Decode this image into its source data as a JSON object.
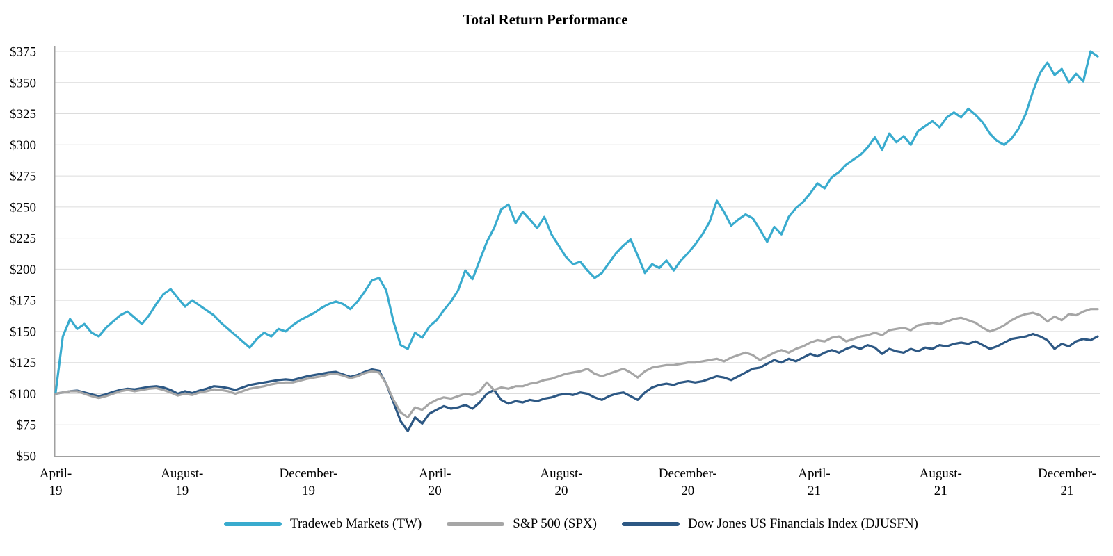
{
  "chart_data": {
    "type": "line",
    "title": "Total Return Performance",
    "grid": true,
    "legend_position": "bottom",
    "y_axis": {
      "min": 50,
      "max": 375,
      "step": 25,
      "tick_prefix": "$",
      "ticks": [
        {
          "value": 375,
          "label": "$375"
        },
        {
          "value": 350,
          "label": "$350"
        },
        {
          "value": 325,
          "label": "$325"
        },
        {
          "value": 300,
          "label": "$300"
        },
        {
          "value": 275,
          "label": "$275"
        },
        {
          "value": 250,
          "label": "$250"
        },
        {
          "value": 225,
          "label": "$225"
        },
        {
          "value": 200,
          "label": "$200"
        },
        {
          "value": 175,
          "label": "$175"
        },
        {
          "value": 150,
          "label": "$150"
        },
        {
          "value": 125,
          "label": "$125"
        },
        {
          "value": 100,
          "label": "$100"
        },
        {
          "value": 75,
          "label": "$75"
        },
        {
          "value": 50,
          "label": "$50"
        }
      ]
    },
    "x_axis": {
      "unit": "months-since-april-2019",
      "ticks": [
        {
          "month": 0,
          "top": "April-",
          "bottom": "19"
        },
        {
          "month": 4,
          "top": "August-",
          "bottom": "19"
        },
        {
          "month": 8,
          "top": "December-",
          "bottom": "19"
        },
        {
          "month": 12,
          "top": "April-",
          "bottom": "20"
        },
        {
          "month": 16,
          "top": "August-",
          "bottom": "20"
        },
        {
          "month": 20,
          "top": "December-",
          "bottom": "20"
        },
        {
          "month": 24,
          "top": "April-",
          "bottom": "21"
        },
        {
          "month": 28,
          "top": "August-",
          "bottom": "21"
        },
        {
          "month": 32,
          "top": "December-",
          "bottom": "21"
        }
      ]
    },
    "colors": {
      "grid": "#dcdcdc",
      "axis": "#a0a0a0",
      "text": "#000000"
    },
    "series": [
      {
        "name": "Tradeweb Markets (TW)",
        "color": "#39ABCE",
        "values": [
          101,
          146,
          160,
          152,
          156,
          149,
          146,
          153,
          158,
          163,
          166,
          161,
          156,
          163,
          172,
          180,
          184,
          177,
          170,
          175,
          171,
          167,
          163,
          157,
          152,
          147,
          142,
          137,
          144,
          149,
          146,
          152,
          150,
          155,
          159,
          162,
          165,
          169,
          172,
          174,
          172,
          168,
          174,
          182,
          191,
          193,
          183,
          158,
          139,
          136,
          149,
          145,
          154,
          159,
          167,
          174,
          183,
          199,
          192,
          207,
          222,
          233,
          248,
          252,
          237,
          246,
          240,
          233,
          242,
          228,
          219,
          210,
          204,
          206,
          199,
          193,
          197,
          205,
          213,
          219,
          224,
          211,
          197,
          204,
          201,
          207,
          199,
          207,
          213,
          220,
          228,
          238,
          255,
          246,
          235,
          240,
          244,
          241,
          232,
          222,
          234,
          228,
          242,
          249,
          254,
          261,
          269,
          265,
          274,
          278,
          284,
          288,
          292,
          298,
          306,
          296,
          309,
          302,
          307,
          300,
          311,
          315,
          319,
          314,
          322,
          326,
          322,
          329,
          324,
          318,
          309,
          303,
          300,
          305,
          313,
          325,
          343,
          358,
          366,
          356,
          361,
          350,
          357,
          351,
          375,
          371
        ]
      },
      {
        "name": "S&P 500 (SPX)",
        "color": "#A6A6A6",
        "values": [
          100,
          101,
          102,
          102,
          100,
          98,
          96.5,
          98,
          100,
          102,
          103,
          102,
          103,
          104,
          104.5,
          103,
          101,
          98.5,
          100,
          99,
          101,
          102,
          103.5,
          103,
          102,
          100,
          102,
          104,
          105,
          106,
          107.5,
          108.5,
          109,
          109,
          110.5,
          112,
          113,
          114,
          115.5,
          116,
          114.5,
          112.5,
          114,
          116.5,
          118,
          117,
          108,
          95,
          85,
          81,
          89,
          87,
          92,
          95,
          97,
          96,
          98,
          100,
          99,
          102,
          109,
          103,
          105,
          104,
          106,
          106,
          108,
          109,
          111,
          112,
          114,
          116,
          117,
          118,
          120,
          116,
          114,
          116,
          118,
          120,
          117,
          113,
          118,
          121,
          122,
          123,
          123,
          124,
          125,
          125,
          126,
          127,
          128,
          126,
          129,
          131,
          133,
          131,
          127,
          130,
          133,
          135,
          133,
          136,
          138,
          141,
          143,
          142,
          145,
          146,
          142,
          144,
          146,
          147,
          149,
          147,
          151,
          152,
          153,
          151,
          155,
          156,
          157,
          156,
          158,
          160,
          161,
          159,
          157,
          153,
          150,
          152,
          155,
          159,
          162,
          164,
          165,
          163,
          158,
          162,
          159,
          164,
          163,
          166,
          168,
          168
        ]
      },
      {
        "name": "Dow Jones US Financials Index (DJUSFN)",
        "color": "#2D5884",
        "values": [
          100,
          101,
          102,
          102.5,
          101,
          99.5,
          98,
          99.5,
          101.5,
          103,
          104,
          103.5,
          104.5,
          105.5,
          106,
          105,
          103,
          100,
          102,
          100.5,
          102.5,
          104,
          106,
          105.5,
          104.5,
          103,
          105,
          107,
          108,
          109,
          110,
          111,
          111.5,
          111,
          112.5,
          114,
          115,
          116,
          117,
          117.5,
          115.5,
          113.5,
          115,
          117.5,
          119.5,
          118.5,
          108,
          93,
          78,
          70,
          81,
          76,
          84,
          87,
          90,
          88,
          89,
          91,
          88,
          93,
          100,
          103,
          95,
          92,
          94,
          93,
          95,
          94,
          96,
          97,
          99,
          100,
          99,
          101,
          100,
          97,
          95,
          98,
          100,
          101,
          98,
          95,
          101,
          105,
          107,
          108,
          107,
          109,
          110,
          109,
          110,
          112,
          114,
          113,
          111,
          114,
          117,
          120,
          121,
          124,
          127,
          125,
          128,
          126,
          129,
          132,
          130,
          133,
          135,
          133,
          136,
          138,
          136,
          139,
          137,
          132,
          136,
          134,
          133,
          136,
          134,
          137,
          136,
          139,
          138,
          140,
          141,
          140,
          142,
          139,
          136,
          138,
          141,
          144,
          145,
          146,
          148,
          146,
          143,
          136,
          140,
          138,
          142,
          144,
          143,
          146
        ]
      }
    ]
  }
}
